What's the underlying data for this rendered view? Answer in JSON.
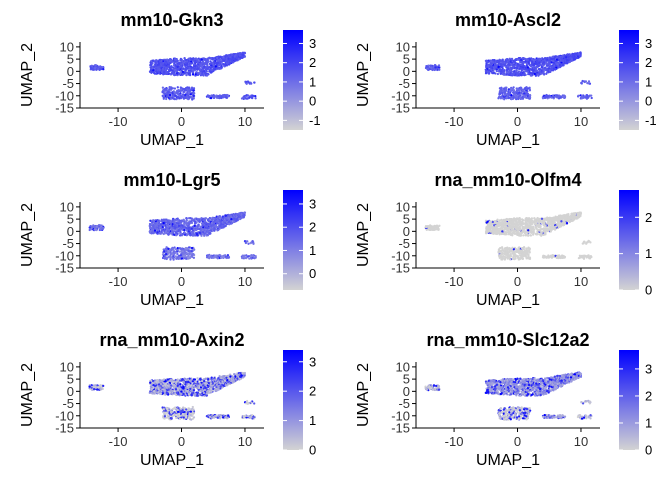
{
  "chart_data": [
    {
      "type": "scatter",
      "title": "mm10-Gkn3",
      "xlabel": "UMAP_1",
      "ylabel": "UMAP_2",
      "xlim": [
        -16,
        13
      ],
      "ylim": [
        -15,
        12
      ],
      "x_ticks": [
        "-10",
        "0",
        "10"
      ],
      "y_ticks": [
        "10",
        "5",
        "0",
        "-5",
        "-10",
        "-15"
      ],
      "color_scale": {
        "low": "#d3d3d3",
        "high": "#0000ff",
        "min": -1.5,
        "max": 3.7,
        "ticks": [
          "3",
          "2",
          "1",
          "0",
          "-1"
        ]
      },
      "expression": {
        "main_body": 1.7,
        "left_island": 1.5,
        "bottom_cluster": 1.4,
        "right_strip": 1.4,
        "far_right": 1.5,
        "speckle": 0.08
      }
    },
    {
      "type": "scatter",
      "title": "mm10-Ascl2",
      "xlabel": "UMAP_1",
      "ylabel": "UMAP_2",
      "xlim": [
        -16,
        13
      ],
      "ylim": [
        -15,
        12
      ],
      "x_ticks": [
        "-10",
        "0",
        "10"
      ],
      "y_ticks": [
        "10",
        "5",
        "0",
        "-5",
        "-10",
        "-15"
      ],
      "color_scale": {
        "low": "#d3d3d3",
        "high": "#0000ff",
        "min": -1.5,
        "max": 3.7,
        "ticks": [
          "3",
          "2",
          "1",
          "0",
          "-1"
        ]
      },
      "expression": {
        "main_body": 1.7,
        "left_island": 1.4,
        "bottom_cluster": 1.3,
        "right_strip": 1.3,
        "far_right": 1.4,
        "speckle": 0.1
      }
    },
    {
      "type": "scatter",
      "title": "mm10-Lgr5",
      "xlabel": "UMAP_1",
      "ylabel": "UMAP_2",
      "xlim": [
        -16,
        13
      ],
      "ylim": [
        -15,
        12
      ],
      "x_ticks": [
        "-10",
        "0",
        "10"
      ],
      "y_ticks": [
        "10",
        "5",
        "0",
        "-5",
        "-10",
        "-15"
      ],
      "color_scale": {
        "low": "#d3d3d3",
        "high": "#0000ff",
        "min": -0.7,
        "max": 3.6,
        "ticks": [
          "3",
          "2",
          "1",
          "0"
        ]
      },
      "expression": {
        "main_body": 1.5,
        "left_island": 1.3,
        "bottom_cluster": 1.2,
        "right_strip": 1.2,
        "far_right": 1.3,
        "speckle": 0.1
      }
    },
    {
      "type": "scatter",
      "title": "rna_mm10-Olfm4",
      "xlabel": "UMAP_1",
      "ylabel": "UMAP_2",
      "xlim": [
        -16,
        13
      ],
      "ylim": [
        -15,
        12
      ],
      "x_ticks": [
        "-10",
        "0",
        "10"
      ],
      "y_ticks": [
        "10",
        "5",
        "0",
        "-5",
        "-10",
        "-15"
      ],
      "color_scale": {
        "low": "#d3d3d3",
        "high": "#0000ff",
        "min": 0,
        "max": 2.75,
        "ticks": [
          "2",
          "1",
          "0"
        ]
      },
      "expression": {
        "main_body": 0,
        "left_island": 0,
        "bottom_cluster": 0,
        "right_strip": 0,
        "far_right": 0,
        "speckle": 0.03
      }
    },
    {
      "type": "scatter",
      "title": "rna_mm10-Axin2",
      "xlabel": "UMAP_1",
      "ylabel": "UMAP_2",
      "xlim": [
        -16,
        13
      ],
      "ylim": [
        -15,
        12
      ],
      "x_ticks": [
        "-10",
        "0",
        "10"
      ],
      "y_ticks": [
        "10",
        "5",
        "0",
        "-5",
        "-10",
        "-15"
      ],
      "color_scale": {
        "low": "#d3d3d3",
        "high": "#0000ff",
        "min": 0,
        "max": 3.4,
        "ticks": [
          "3",
          "2",
          "1",
          "0"
        ]
      },
      "expression": {
        "main_body": 0.6,
        "left_island": 0.2,
        "bottom_cluster": 0.1,
        "right_strip": 0.5,
        "far_right": 0.3,
        "speckle": 0.35
      }
    },
    {
      "type": "scatter",
      "title": "rna_mm10-Slc12a2",
      "xlabel": "UMAP_1",
      "ylabel": "UMAP_2",
      "xlim": [
        -16,
        13
      ],
      "ylim": [
        -15,
        12
      ],
      "x_ticks": [
        "-10",
        "0",
        "10"
      ],
      "y_ticks": [
        "10",
        "5",
        "0",
        "-5",
        "-10",
        "-15"
      ],
      "color_scale": {
        "low": "#d3d3d3",
        "high": "#0000ff",
        "min": 0,
        "max": 3.7,
        "ticks": [
          "3",
          "2",
          "1",
          "0"
        ]
      },
      "expression": {
        "main_body": 1.0,
        "left_island": 0.2,
        "bottom_cluster": 0.3,
        "right_strip": 0.8,
        "far_right": 0.3,
        "speckle": 0.3
      }
    }
  ]
}
